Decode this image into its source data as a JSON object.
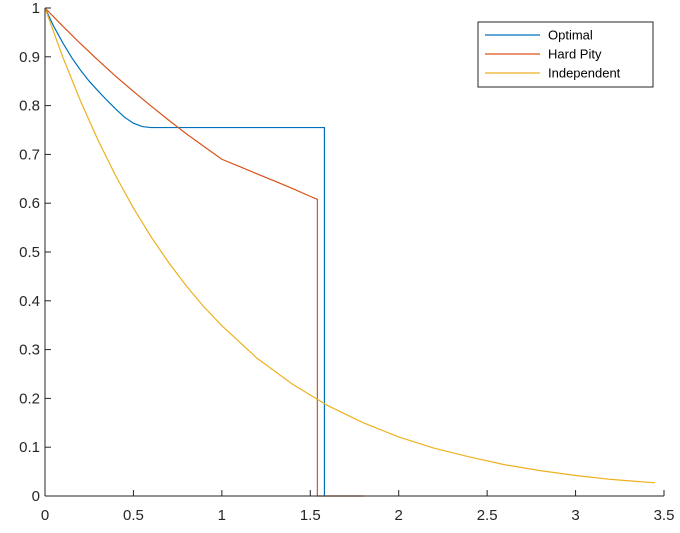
{
  "chart_data": {
    "type": "line",
    "title": "",
    "xlabel": "",
    "ylabel": "",
    "xlim": [
      0,
      3.5
    ],
    "ylim": [
      0,
      1
    ],
    "xticks": [
      0,
      0.5,
      1,
      1.5,
      2,
      2.5,
      3,
      3.5
    ],
    "xtick_labels": [
      "0",
      "0.5",
      "1",
      "1.5",
      "2",
      "2.5",
      "3",
      "3.5"
    ],
    "yticks": [
      0,
      0.1,
      0.2,
      0.3,
      0.4,
      0.5,
      0.6,
      0.7,
      0.8,
      0.9,
      1
    ],
    "ytick_labels": [
      "0",
      "0.1",
      "0.2",
      "0.3",
      "0.4",
      "0.5",
      "0.6",
      "0.7",
      "0.8",
      "0.9",
      "1"
    ],
    "grid": false,
    "legend_position": "top-right",
    "series": [
      {
        "name": "Optimal",
        "color": "#0072BD",
        "x": [
          0,
          0.05,
          0.1,
          0.15,
          0.2,
          0.25,
          0.3,
          0.35,
          0.4,
          0.45,
          0.5,
          0.55,
          0.6,
          1.58,
          1.58
        ],
        "y": [
          1,
          0.962,
          0.929,
          0.899,
          0.873,
          0.85,
          0.83,
          0.811,
          0.793,
          0.776,
          0.764,
          0.757,
          0.755,
          0.755,
          0
        ]
      },
      {
        "name": "Hard Pity",
        "color": "#D95319",
        "x": [
          0,
          0.1,
          0.2,
          0.3,
          0.4,
          0.5,
          0.6,
          0.7,
          0.8,
          0.9,
          1.0,
          1.1,
          1.2,
          1.3,
          1.4,
          1.5,
          1.54,
          1.54,
          1.8
        ],
        "y": [
          1,
          0.963,
          0.927,
          0.893,
          0.86,
          0.829,
          0.799,
          0.77,
          0.742,
          0.716,
          0.69,
          0.675,
          0.66,
          0.645,
          0.63,
          0.614,
          0.608,
          0,
          0
        ]
      },
      {
        "name": "Independent",
        "color": "#EDB120",
        "x": [
          0,
          0.1,
          0.2,
          0.3,
          0.4,
          0.5,
          0.6,
          0.7,
          0.8,
          0.9,
          1.0,
          1.2,
          1.4,
          1.6,
          1.8,
          2.0,
          2.2,
          2.4,
          2.6,
          2.8,
          3.0,
          3.2,
          3.45
        ],
        "y": [
          1,
          0.9,
          0.81,
          0.729,
          0.656,
          0.59,
          0.531,
          0.478,
          0.43,
          0.387,
          0.349,
          0.282,
          0.229,
          0.185,
          0.15,
          0.121,
          0.098,
          0.08,
          0.064,
          0.052,
          0.042,
          0.034,
          0.027
        ]
      }
    ]
  }
}
